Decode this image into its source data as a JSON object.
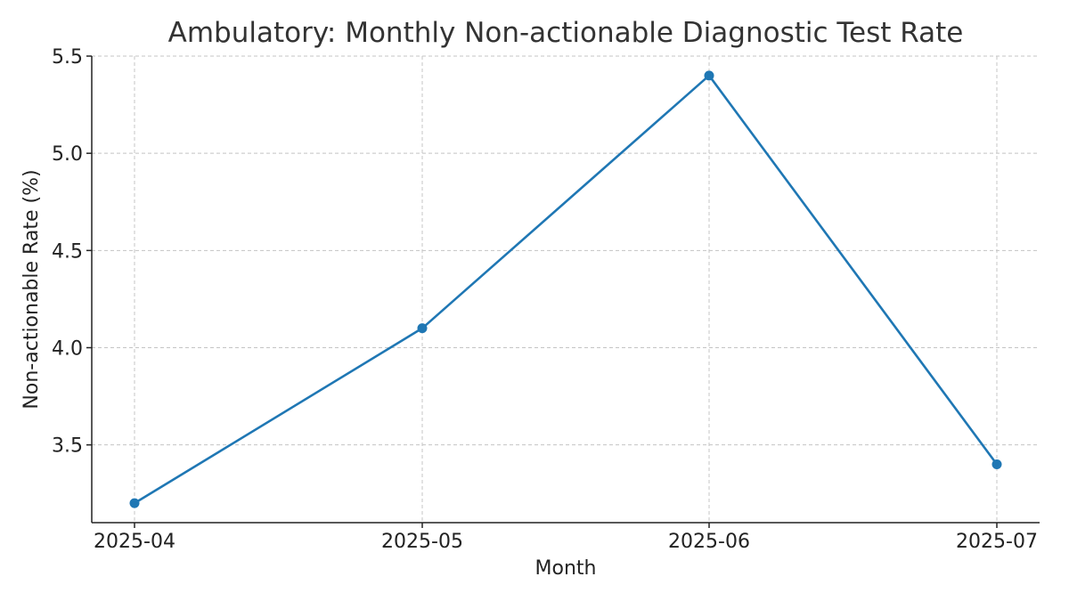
{
  "chart_data": {
    "type": "line",
    "title": "Ambulatory: Monthly Non-actionable Diagnostic Test Rate",
    "xlabel": "Month",
    "ylabel": "Non-actionable Rate (%)",
    "categories": [
      "2025-04",
      "2025-05",
      "2025-06",
      "2025-07"
    ],
    "series": [
      {
        "values": [
          3.2,
          4.1,
          5.4,
          3.4
        ],
        "color": "#1f77b4",
        "marker": "circle"
      }
    ],
    "ylim": [
      3.1,
      5.5
    ],
    "yticks": [
      3.5,
      4.0,
      4.5,
      5.0,
      5.5
    ],
    "ytick_labels": [
      "3.5",
      "4.0",
      "4.5",
      "5.0",
      "5.5"
    ],
    "grid": true,
    "legend": "none"
  }
}
